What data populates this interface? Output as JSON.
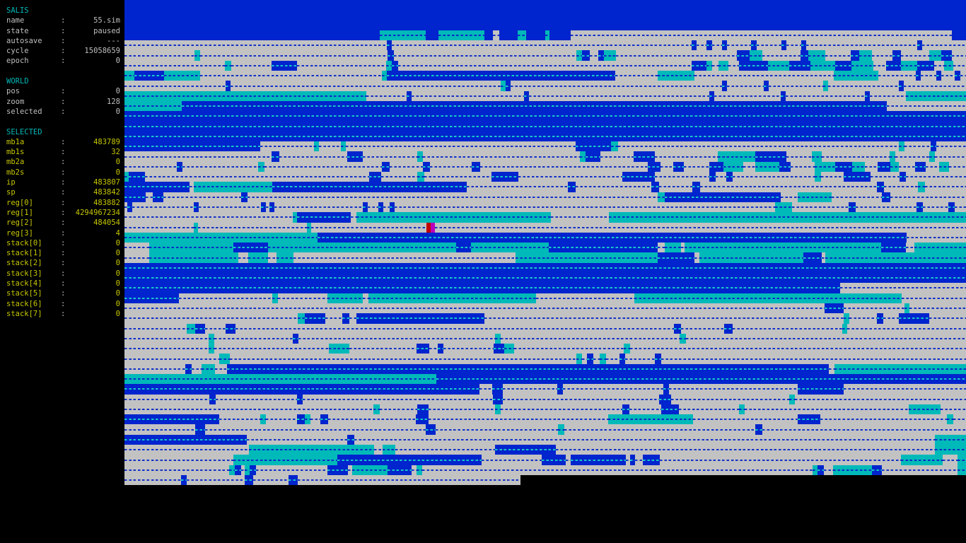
{
  "app": {
    "name": "SALIS",
    "state_note": "terminal artificial-life simulator UI"
  },
  "sidebar": {
    "sections": [
      {
        "title": "SALIS",
        "color": "gray",
        "rows": [
          {
            "label": "name",
            "value": "55.sim"
          },
          {
            "label": "state",
            "value": "paused"
          },
          {
            "label": "autosave",
            "value": "---"
          },
          {
            "label": "cycle",
            "value": "15058659"
          },
          {
            "label": "epoch",
            "value": "0"
          }
        ]
      },
      {
        "title": "WORLD",
        "color": "gray",
        "rows": [
          {
            "label": "pos",
            "value": "0"
          },
          {
            "label": "zoom",
            "value": "128"
          },
          {
            "label": "selected",
            "value": "0"
          }
        ]
      },
      {
        "title": "SELECTED",
        "color": "yellow",
        "rows": [
          {
            "label": "mb1a",
            "value": "483789"
          },
          {
            "label": "mb1s",
            "value": "32"
          },
          {
            "label": "mb2a",
            "value": "0"
          },
          {
            "label": "mb2s",
            "value": "0"
          },
          {
            "label": "ip",
            "value": "483807"
          },
          {
            "label": "sp",
            "value": "483842"
          },
          {
            "label": "reg[0]",
            "value": "483882"
          },
          {
            "label": "reg[1]",
            "value": "4294967234"
          },
          {
            "label": "reg[2]",
            "value": "484054"
          },
          {
            "label": "reg[3]",
            "value": "4"
          },
          {
            "label": "stack[0]",
            "value": "0"
          },
          {
            "label": "stack[1]",
            "value": "0"
          },
          {
            "label": "stack[2]",
            "value": "0"
          },
          {
            "label": "stack[3]",
            "value": "0"
          },
          {
            "label": "stack[4]",
            "value": "0"
          },
          {
            "label": "stack[5]",
            "value": "0"
          },
          {
            "label": "stack[6]",
            "value": "0"
          },
          {
            "label": "stack[7]",
            "value": "0"
          }
        ]
      }
    ]
  },
  "memory": {
    "palette": {
      "b": "#0024cd",
      "c": "#00b9b9",
      "g": "#c2c2c2",
      "r": "#c00000",
      "m": "#bb00bb",
      "k": "#000000",
      "dash_on_blue": "#17c9c9",
      "dash_on_gray": "#1230c8",
      "dash_on_cyan": "#0a2ac8"
    },
    "cursor": {
      "row": 22,
      "colors": [
        "r",
        "m"
      ]
    },
    "nodash_blue_rows": [
      0,
      1,
      2,
      3
    ],
    "rows": [
      "b:100",
      "b:100",
      "b:100",
      "b:30.3 c:5.5 b:1.5 c:5.5 b:1 g:0.7 b:2.2 c:1 b:2.3 c:0.5 b:2.5 g:45.3 b:1.7",
      "g:31.2 b:0.6 g:35.6 b:0.6 g:1.2 b:0.6 g:1.2 b:0.6 g:2.9 b:0.6 g:3 b:0.6 g:1.7 b:0.6 g:13.2 b:0.6 g:5.2",
      "g:8.3 c:0.7 g:22.3 b:0.7 g:21.7 c:0.7 b:0.9 g:1 b:0.7 c:1.4 g:14.4 b:1.5 c:1.5 g:4.5 b:1 c:2 g:3 b:1 c:1.5 g:2.5 b:1 g:3.3 c:1.5 b:1.2 g:2",
      "g:11.9 c:0.8 g:4.8 b:3 g:10.6 c:0.7 b:0.7 g:34.9 b:1.8 c:0.6 g:0.8 c:1.2 g:1.2 b:3.5 c:2.5 b:2.5 c:3 b:1.9 c:2.6 g:1.5 b:1.8 c:1.9 b:2 g:1.2 c:1.1 g:2",
      "c:1.2 b:3.5 c:4.3 g:21.6 c:0.6 b:27.1 g:5.1 c:4.3 g:16.6 c:5.3 g:4.4 b:0.6 g:1.9 b:0.6 g:1.6 b:0.6 g:1",
      "g:12 b:0.6 g:32.1 c:0.6 b:0.6 g:25.1 b:0.6 g:4.4 b:0.6 g:6.4 c:0.6 g:8.4 b:0.6 g:7.4",
      "c:28.7 g:4.8 b:0.6 g:13.4 b:0.6 g:21.4 b:0.6 g:7.9 b:0.6 g:9.4 b:0.6 g:4.3 c:7.1",
      "c:6.8 b:83.8 g:9.4",
      "b:100",
      "b:100",
      "b:100",
      "b:16.1 g:6.4 c:0.6 g:2.6 c:0.6 g:27.3 b:4.2 c:0.9 g:33.3 c:0.7 g:3.1 b:0.7 g:3.5",
      "g:17.5 b:0.9 g:8.1 b:1.8 g:6.5 c:0.7 g:18.6 c:0.7 b:1.8 g:3.9 b:2.5 g:7.5 c:4.5 b:3.7 g:3 c:1.2 g:8 c:0.7 g:4 c:0.7 g:3.7",
      "g:6.2 b:0.7 g:9 c:0.7 g:14 b:0.9 g:4 b:0.8 g:5 b:1 g:19.9 b:1.5 g:1.5 b:1.3 g:3 b:1.7 c:2.3 g:1.5 c:2.8 b:1.4 g:2.8 c:2.5 b:2 c:1.5 g:1.5 b:1.5 c:1 g:2 b:1.2 g:1.6 c:1.2 g:2",
      "c:0.5 b:1.9 g:26.7 b:1.4 g:4.3 c:0.8 g:8 b:3.2 g:12.4 b:3.8 g:6.5 b:0.8 g:1.2 b:0.8 g:9.7 c:0.8 g:2.7 b:3.2 g:3.4 b:0.8 g:7.1",
      "b:7.7 g:0.5 c:9.4 b:23.1 g:12 b:0.9 g:9 b:0.9 g:4 b:0.9 g:21 b:0.9 g:4 c:0.8 g:4.9",
      "b:2.5 g:0.9 b:1.2 g:9.3 b:0.7 g:48.8 c:0.8 b:13.8 g:2 c:4 g:6 b:1 g:9",
      "g:0.3 b:0.6 g:7.3 b:0.6 g:7.4 b:0.6 g:0.4 b:0.6 g:10.5 b:0.6 g:1.3 b:0.6 g:0.7 b:0.6 g:45.2 c:2 g:6.8 b:0.8 g:7.2 b:0.8 g:3 b:0.8 g:2.4",
      "g:20 c:0.5 b:6.4 g:0.7 c:23.1 g:6.9 c:42.4",
      "g:8.2 c:0.5 g:13 c:0.5 g:13.7 r:0.5 m:0.5 g:63.1",
      "c:22.9 b:70 g:7.1",
      "g:2.9 c:10 b:4.2 c:22.3 b:1.8 c:9.2 b:13 g:0.8 c:1.9 g:0.5 c:23.3 b:3 g:1 c:7.6",
      "g:2.9 c:10.6 g:1.2 c:2.4 g:1 c:2 g:26.4 c:16.9 b:4.3 g:0.6 c:12.4 b:2.2 g:0.4 c:16.7",
      "b:100",
      "b:100",
      "b:85 g:15",
      "b:6.5 g:11.1 c:0.6 g:5.9 c:4.2 g:0.7 c:19.9 g:11.7 c:31.8 g:7.6",
      "g:83.2 b:2.3 g:7.2 c:0.6 g:6.7",
      "g:20.6 c:0.8 b:2.5 g:2 b:0.8 g:0.9 b:15.2 g:42.7 c:0.6 g:3.3 b:0.8 g:1.8 b:3.6 g:4.4",
      "g:7.4 c:1 b:1.2 g:2.4 b:1.2 g:52.1 b:0.8 g:5.2 b:1 g:13 c:0.6 g:13.9",
      "g:10 c:0.7 g:9.3 b:0.7 g:23.3 c:0.7 g:21.3 c:0.7 g:33.3",
      "g:10 c:0.7 g:13.6 c:2.4 g:8 b:1.5 g:1 b:0.7 g:6 b:1.2 c:1.2 g:13 c:0.8 g:39.9",
      "g:11.3 c:1.2 g:41.2 c:0.7 g:0.6 b:0.7 g:0.8 c:0.7 g:1.6 b:0.7 g:3.5 b:0.8 g:36.2",
      "g:7.2 b:0.8 g:1.2 c:1.6 g:1.4 b:71.5 g:0.7 c:15.6",
      "c:37.1 b:62.9",
      "b:42.2 g:1.5 b:1.3 g:6.4 b:0.7 g:11.9 b:0.7 g:15.3 b:5.5 g:14.5",
      "g:10.1 b:0.7 g:9.7 b:0.7 g:22.6 b:1.2 g:18.5 b:1.5 g:14 c:0.7 g:20.3",
      "g:29.6 c:0.7 g:4.5 b:1.3 g:7.9 c:0.7 g:14.5 b:0.8 g:3.8 b:2.1 g:7.1 c:0.7 g:19.5 c:3.8 g:3",
      "b:11.3 g:4.8 c:0.7 g:3.7 b:0.9 c:0.7 g:1.2 b:0.9 g:10.4 b:1.5 g:21.4 c:10.1 g:12.4 b:2.7 g:15 c:0.8 g:1.5",
      "g:8.4 b:1.2 g:26.2 b:1.2 g:14.5 c:0.8 g:22.7 b:0.8 g:24.2",
      "b:14.5 g:12 b:0.8 g:69 c:3.7",
      "g:14.8 c:14.9 g:1 c:1.5 g:11.8 b:7.3 g:45 c:3.7",
      "g:12.9 c:12.4 b:17.1 g:7.2 b:2.8 g:0.6 b:6.6 g:0.5 b:0.6 g:0.9 b:2 g:28.7 c:4.9 g:1.8 c:1",
      "g:12.4 c:0.7 b:0.8 g:0.4 c:0.6 b:0.7 g:8.5 b:2.5 g:0.5 c:4.2 b:2.8 g:0.6 c:0.7 g:46.4 c:0.6 b:0.7 g:1.1 c:4.6 b:1.2 g:9 c:1",
      "g:6.7 b:0.7 g:6.9 b:1 g:4.2 b:1.1 g:26.5 k:52.9"
    ]
  }
}
